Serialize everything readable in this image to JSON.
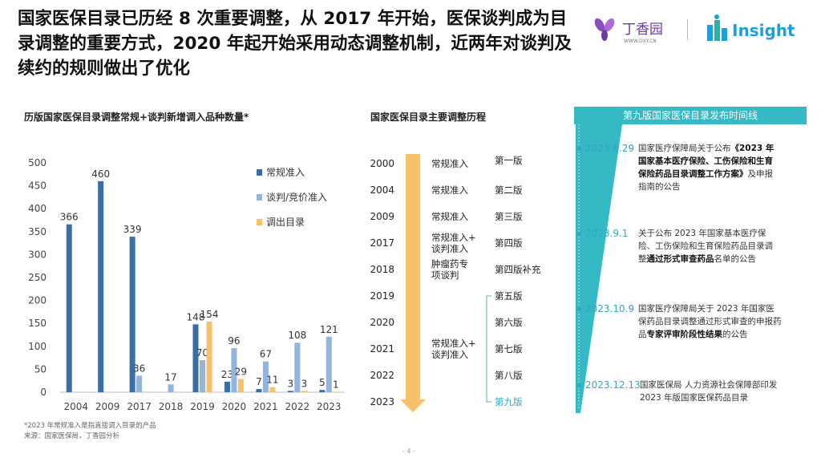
{
  "headline": "国家医保目录已历经 8 次重要调整，从 2017 年开始，医保谈判成为目录调整的重要方式，2020 年起开始采用动态调整机制，近两年对谈判及续约的规则做出了优化",
  "logos": {
    "dxy_name": "丁香园",
    "dxy_url": "WWW.DXY.CN",
    "insight": "Insight"
  },
  "left_title": "历版国家医保目录调整常规+谈判新增调入品种数量*",
  "chart_data": {
    "type": "bar",
    "categories": [
      "2004",
      "2009",
      "2017",
      "2018",
      "2019",
      "2020",
      "2021",
      "2022",
      "2023"
    ],
    "series": [
      {
        "name": "常规准入",
        "color": "#3a6ea5",
        "values": [
          366,
          460,
          339,
          null,
          148,
          23,
          7,
          3,
          5
        ]
      },
      {
        "name": "谈判/竞价准入",
        "color": "#92b4dd",
        "values": [
          null,
          null,
          36,
          17,
          70,
          96,
          67,
          108,
          121
        ]
      },
      {
        "name": "调出目录",
        "color": "#f7c16a",
        "values": [
          null,
          null,
          null,
          null,
          154,
          29,
          11,
          3,
          1
        ]
      }
    ],
    "yticks": [
      "0",
      "50",
      "100",
      "150",
      "200",
      "250",
      "300",
      "350",
      "400",
      "450",
      "500"
    ],
    "ylim": [
      0,
      500
    ]
  },
  "footnotes": [
    "*2023 年常规准入是指直接调入目录的产品",
    "来源：国家医保局，丁香园分析"
  ],
  "process": {
    "title": "国家医保目录主要调整历程",
    "years": [
      "2000",
      "2004",
      "2009",
      "2017",
      "2018",
      "2019",
      "2020",
      "2021",
      "2022",
      "2023"
    ],
    "methods": [
      {
        "lines": [
          "常规准入"
        ],
        "row": 0
      },
      {
        "lines": [
          "常规准入"
        ],
        "row": 1
      },
      {
        "lines": [
          "常规准入"
        ],
        "row": 2
      },
      {
        "lines": [
          "常规准入+",
          "谈判准入"
        ],
        "row": 3
      },
      {
        "lines": [
          "肿瘤药专",
          "项谈判"
        ],
        "row": 4
      },
      {
        "lines": [
          "常规准入+",
          "谈判准入"
        ],
        "row": 7
      }
    ],
    "editions": [
      "第一版",
      "第二版",
      "第三版",
      "第四版",
      "第四版补充",
      "第五版",
      "第六版",
      "第七版",
      "第八版",
      "第九版"
    ],
    "highlight_color": "#2fa8c4"
  },
  "timeline": {
    "header": "第九版国家医保目录发布时间线",
    "items": [
      {
        "date": "2023.6.29",
        "pre": "国家医疗保障局关于公布",
        "bold": "《2023 年国家基本医疗保险、工伤保险和生育保险药品目录调整工作方案》",
        "post": "及申报指南的公告"
      },
      {
        "date": "2023.9.1",
        "pre": "关于公布 2023 年国家基本医疗保险、工伤保险和生育保险药品目录调整",
        "bold": "通过形式审查药品",
        "post": "名单的公告"
      },
      {
        "date": "2023.10.9",
        "pre": "国家医疗保障局关于 2023 年国家医保药品目录调整通过形式审查的申报药品",
        "bold": "专家评审阶段性结果",
        "post": "的公告"
      },
      {
        "date": "2023.12.13",
        "pre": "国家医保局 人力资源社会保障部印发 2023 年版国家医保药品目录",
        "bold": "",
        "post": ""
      }
    ]
  },
  "page_number": "- 4 -"
}
